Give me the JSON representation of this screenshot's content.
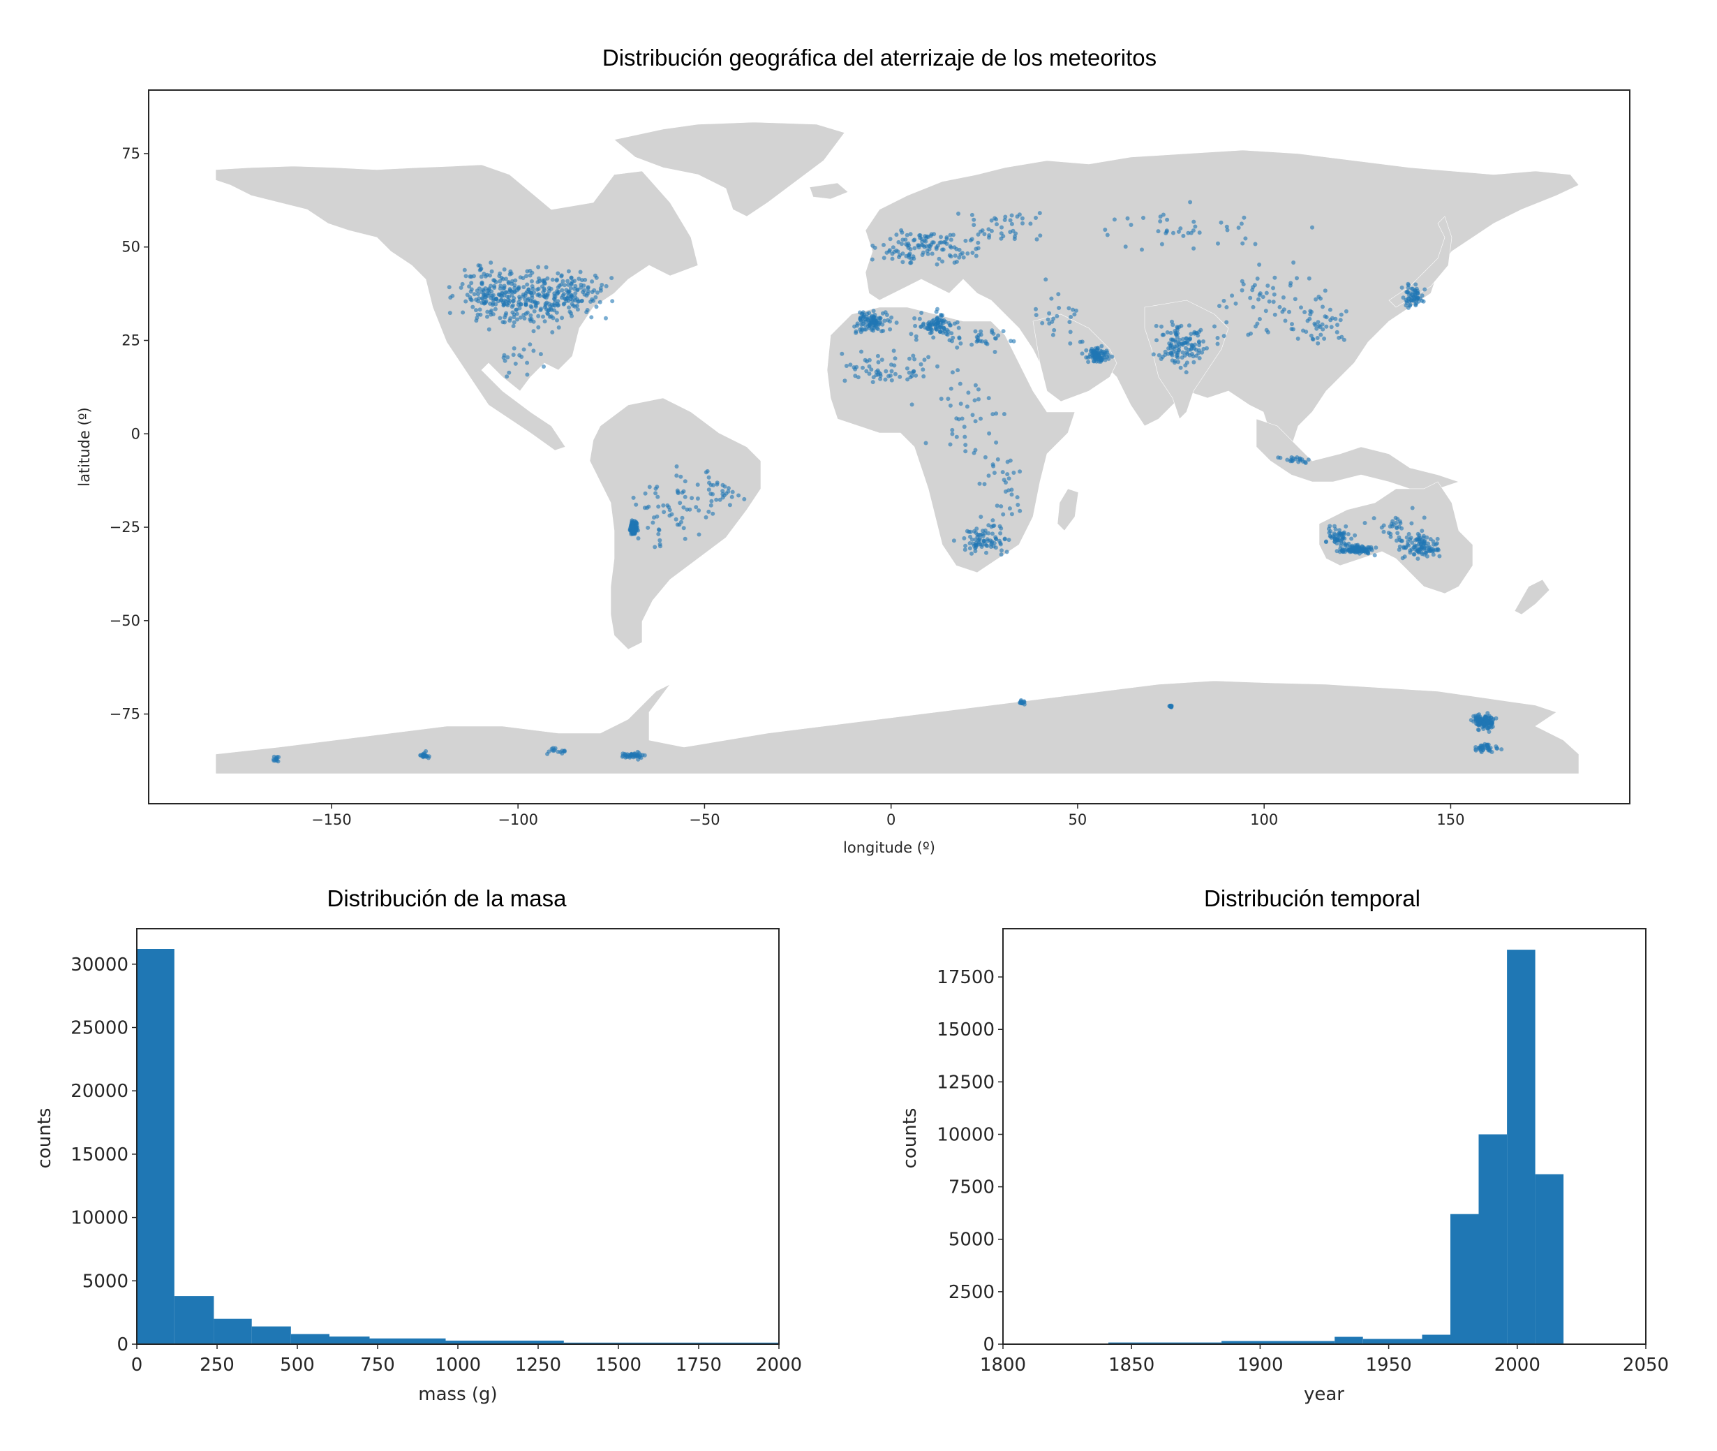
{
  "chart_data": [
    {
      "type": "scatter",
      "title": "Distribución geográfica del aterrizaje de los meteoritos",
      "xlabel": "longitude (º)",
      "ylabel": "latitude (º)",
      "xlim": [
        -199,
        198
      ],
      "ylim": [
        -99,
        92
      ],
      "xticks": [
        -150,
        -100,
        -50,
        0,
        50,
        100,
        150
      ],
      "yticks": [
        75,
        50,
        25,
        0,
        -25,
        -50,
        -75
      ],
      "background": "world land map (light gray)",
      "point_color": "#1f77b4",
      "land_color": "#d3d3d3",
      "grid": false,
      "clusters": [
        {
          "lon": -100,
          "lat": 36,
          "spread": [
            14,
            7
          ],
          "n": 260
        },
        {
          "lon": -86,
          "lat": 37,
          "spread": [
            9,
            6
          ],
          "n": 120
        },
        {
          "lon": -110,
          "lat": 40,
          "spread": [
            7,
            6
          ],
          "n": 40
        },
        {
          "lon": -100,
          "lat": 20,
          "spread": [
            6,
            4
          ],
          "n": 18
        },
        {
          "lon": 10,
          "lat": 50,
          "spread": [
            12,
            5
          ],
          "n": 120
        },
        {
          "lon": 30,
          "lat": 55,
          "spread": [
            12,
            5
          ],
          "n": 40
        },
        {
          "lon": -5,
          "lat": 30,
          "spread": [
            5,
            3
          ],
          "n": 100
        },
        {
          "lon": 12,
          "lat": 29,
          "spread": [
            6,
            3
          ],
          "n": 90
        },
        {
          "lon": 25,
          "lat": 25,
          "spread": [
            8,
            3
          ],
          "n": 30
        },
        {
          "lon": 0,
          "lat": 18,
          "spread": [
            12,
            4
          ],
          "n": 60
        },
        {
          "lon": 20,
          "lat": 5,
          "spread": [
            12,
            12
          ],
          "n": 40
        },
        {
          "lon": 55,
          "lat": 21,
          "spread": [
            3,
            2
          ],
          "n": 90
        },
        {
          "lon": 45,
          "lat": 30,
          "spread": [
            10,
            8
          ],
          "n": 25
        },
        {
          "lon": 25,
          "lat": -28,
          "spread": [
            6,
            4
          ],
          "n": 80
        },
        {
          "lon": 30,
          "lat": -15,
          "spread": [
            8,
            10
          ],
          "n": 30
        },
        {
          "lon": 78,
          "lat": 24,
          "spread": [
            7,
            6
          ],
          "n": 120
        },
        {
          "lon": 100,
          "lat": 35,
          "spread": [
            15,
            10
          ],
          "n": 60
        },
        {
          "lon": 80,
          "lat": 55,
          "spread": [
            25,
            6
          ],
          "n": 40
        },
        {
          "lon": 140,
          "lat": 37,
          "spread": [
            3,
            3
          ],
          "n": 60
        },
        {
          "lon": 115,
          "lat": 30,
          "spread": [
            8,
            6
          ],
          "n": 40
        },
        {
          "lon": 108,
          "lat": -7,
          "spread": [
            4,
            1
          ],
          "n": 20
        },
        {
          "lon": 125,
          "lat": -31,
          "spread": [
            4,
            1
          ],
          "n": 100
        },
        {
          "lon": 120,
          "lat": -28,
          "spread": [
            3,
            3
          ],
          "n": 60
        },
        {
          "lon": 142,
          "lat": -30,
          "spread": [
            5,
            3
          ],
          "n": 100
        },
        {
          "lon": 135,
          "lat": -25,
          "spread": [
            6,
            4
          ],
          "n": 30
        },
        {
          "lon": -69,
          "lat": -25,
          "spread": [
            1,
            2
          ],
          "n": 120
        },
        {
          "lon": -60,
          "lat": -20,
          "spread": [
            9,
            10
          ],
          "n": 60
        },
        {
          "lon": -45,
          "lat": -15,
          "spread": [
            5,
            5
          ],
          "n": 30
        },
        {
          "lon": 159,
          "lat": -77,
          "spread": [
            3,
            2
          ],
          "n": 130
        },
        {
          "lon": 160,
          "lat": -84,
          "spread": [
            3,
            1
          ],
          "n": 40
        },
        {
          "lon": -69,
          "lat": -86,
          "spread": [
            3,
            1
          ],
          "n": 40
        },
        {
          "lon": -125,
          "lat": -86,
          "spread": [
            1,
            1
          ],
          "n": 20
        },
        {
          "lon": -165,
          "lat": -87,
          "spread": [
            1,
            1
          ],
          "n": 12
        },
        {
          "lon": 75,
          "lat": -73,
          "spread": [
            0.5,
            0.3
          ],
          "n": 12
        },
        {
          "lon": 35,
          "lat": -72,
          "spread": [
            1,
            0.5
          ],
          "n": 15
        },
        {
          "lon": -90,
          "lat": -85,
          "spread": [
            3,
            1
          ],
          "n": 15
        }
      ]
    },
    {
      "type": "bar",
      "title": "Distribución de la masa",
      "xlabel": "mass (g)",
      "ylabel": "counts",
      "xlim": [
        0,
        2000
      ],
      "ylim": [
        0,
        32800
      ],
      "xticks": [
        0,
        250,
        500,
        750,
        1000,
        1250,
        1500,
        1750,
        2000
      ],
      "yticks": [
        0,
        5000,
        10000,
        15000,
        20000,
        25000,
        30000
      ],
      "bin_edges": [
        0,
        117,
        240,
        358,
        480,
        600,
        725,
        962,
        1330,
        2000
      ],
      "values": [
        31200,
        3800,
        2000,
        1400,
        800,
        600,
        450,
        280,
        120
      ]
    },
    {
      "type": "bar",
      "title": "Distribución temporal",
      "xlabel": "year",
      "ylabel": "counts",
      "xlim": [
        1800,
        2050
      ],
      "ylim": [
        0,
        19800
      ],
      "xticks": [
        1800,
        1850,
        1900,
        1950,
        2000,
        2050
      ],
      "yticks": [
        0,
        2500,
        5000,
        7500,
        10000,
        12500,
        15000,
        17500
      ],
      "bin_edges": [
        1841,
        1885,
        1929,
        1940,
        1963,
        1974,
        1985,
        1996,
        2007,
        2018
      ],
      "values": [
        80,
        150,
        350,
        250,
        450,
        6200,
        10000,
        18800,
        8100
      ]
    }
  ]
}
